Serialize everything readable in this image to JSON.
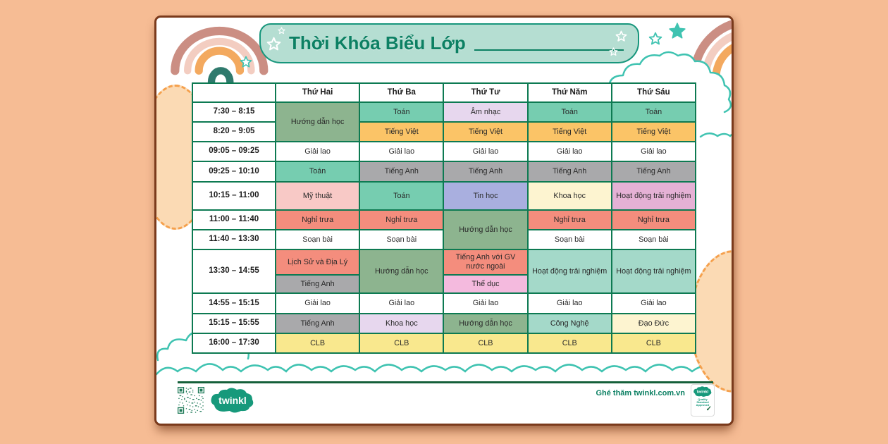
{
  "ui": {
    "background": "#f6bc94",
    "page": "#ffffff",
    "page_edge": "#7a3a1c",
    "banner_fill": "#b5ded2",
    "banner_border": "#17967c",
    "title_green": "#0c8063",
    "table_border": "#0d7a52",
    "cloud_teal": "#3fc3b1",
    "dash_orange": "#f5a04c",
    "blob_peach": "#fbdab4",
    "footer_green": "#15603a",
    "brand_teal": "#17997b",
    "qr_green": "#1e7a58",
    "text_dark": "#2a2a2a",
    "rainbow_rose": "#cb8e83",
    "rainbow_pink": "#f3cdc1",
    "rainbow_orange": "#f3a95f",
    "rainbow_teal": "#2f7a6d"
  },
  "subjects": {
    "white": "#ffffff",
    "teal": "#76cdb0",
    "sage": "#8db48f",
    "lavender": "#e7d7ee",
    "orange": "#fbc467",
    "gray": "#a9a9ab",
    "pink": "#f8c9c6",
    "periwinkle": "#a9afdf",
    "cream": "#fdf4d0",
    "mauve": "#e5b1d5",
    "salmon": "#f48d7d",
    "mint": "#a4d9c9",
    "rose": "#f4bade",
    "yellow": "#f9e88e"
  },
  "page": {
    "title": "Thời Khóa Biểu Lớp"
  },
  "timetable": {
    "header": [
      "",
      "Thứ Hai",
      "Thứ Ba",
      "Thứ Tư",
      "Thứ Năm",
      "Thứ Sáu"
    ],
    "rows": [
      {
        "time": "7:30 – 8:15",
        "cells": [
          {
            "t": "Hướng dẫn học",
            "c": "sage",
            "rs": 2
          },
          {
            "t": "Toán",
            "c": "teal"
          },
          {
            "t": "Âm nhạc",
            "c": "lavender"
          },
          {
            "t": "Toán",
            "c": "teal"
          },
          {
            "t": "Toán",
            "c": "teal"
          }
        ]
      },
      {
        "time": "8:20 – 9:05",
        "cells": [
          {
            "t": "Tiếng Việt",
            "c": "orange"
          },
          {
            "t": "Tiếng Việt",
            "c": "orange"
          },
          {
            "t": "Tiếng Việt",
            "c": "orange"
          },
          {
            "t": "Tiếng Việt",
            "c": "orange"
          }
        ]
      },
      {
        "time": "09:05 – 09:25",
        "cells": [
          {
            "t": "Giải lao",
            "c": "white"
          },
          {
            "t": "Giải lao",
            "c": "white"
          },
          {
            "t": "Giải lao",
            "c": "white"
          },
          {
            "t": "Giải lao",
            "c": "white"
          },
          {
            "t": "Giải lao",
            "c": "white"
          }
        ]
      },
      {
        "time": "09:25 – 10:10",
        "cells": [
          {
            "t": "Toán",
            "c": "teal"
          },
          {
            "t": "Tiếng Anh",
            "c": "gray"
          },
          {
            "t": "Tiếng Anh",
            "c": "gray"
          },
          {
            "t": "Tiếng Anh",
            "c": "gray"
          },
          {
            "t": "Tiếng Anh",
            "c": "gray"
          }
        ]
      },
      {
        "time": "10:15 – 11:00",
        "cells": [
          {
            "t": "Mỹ thuật",
            "c": "pink"
          },
          {
            "t": "Toán",
            "c": "teal"
          },
          {
            "t": "Tin học",
            "c": "periwinkle"
          },
          {
            "t": "Khoa học",
            "c": "cream"
          },
          {
            "t": "Hoạt động trải nghiệm",
            "c": "mauve"
          }
        ]
      },
      {
        "time": "11:00 – 11:40",
        "cells": [
          {
            "t": "Nghỉ trưa",
            "c": "salmon"
          },
          {
            "t": "Nghỉ trưa",
            "c": "salmon"
          },
          {
            "t": "Hướng dẫn học",
            "c": "sage",
            "rs": 2
          },
          {
            "t": "Nghỉ trưa",
            "c": "salmon"
          },
          {
            "t": "Nghỉ trưa",
            "c": "salmon"
          }
        ]
      },
      {
        "time": "11:40 – 13:30",
        "cells": [
          {
            "t": "Soạn bài",
            "c": "white"
          },
          {
            "t": "Soạn bài",
            "c": "white"
          },
          {
            "t": "Soạn bài",
            "c": "white"
          },
          {
            "t": "Soạn bài",
            "c": "white"
          }
        ]
      },
      {
        "time": "13:30 – 14:55",
        "cells": [
          {
            "split": [
              {
                "t": "Lịch Sử và Địa Lý",
                "c": "salmon"
              },
              {
                "t": "Tiếng Anh",
                "c": "gray"
              }
            ]
          },
          {
            "t": "Hướng dẫn học",
            "c": "sage"
          },
          {
            "split": [
              {
                "t": "Tiếng Anh với GV nước ngoài",
                "c": "salmon"
              },
              {
                "t": "Thể dục",
                "c": "rose"
              }
            ]
          },
          {
            "t": "Hoạt động trải nghiệm",
            "c": "mint"
          },
          {
            "t": "Hoạt động trải nghiệm",
            "c": "mint"
          }
        ]
      },
      {
        "time": "14:55 – 15:15",
        "cells": [
          {
            "t": "Giải lao",
            "c": "white"
          },
          {
            "t": "Giải lao",
            "c": "white"
          },
          {
            "t": "Giải lao",
            "c": "white"
          },
          {
            "t": "Giải lao",
            "c": "white"
          },
          {
            "t": "Giải lao",
            "c": "white"
          }
        ]
      },
      {
        "time": "15:15 – 15:55",
        "cells": [
          {
            "t": "Tiếng Anh",
            "c": "gray"
          },
          {
            "t": "Khoa học",
            "c": "lavender"
          },
          {
            "t": "Hướng dẫn học",
            "c": "sage"
          },
          {
            "t": "Công Nghệ",
            "c": "mint"
          },
          {
            "t": "Đạo Đức",
            "c": "cream"
          }
        ]
      },
      {
        "time": "16:00 – 17:30",
        "cells": [
          {
            "t": "CLB",
            "c": "yellow"
          },
          {
            "t": "CLB",
            "c": "yellow"
          },
          {
            "t": "CLB",
            "c": "yellow"
          },
          {
            "t": "CLB",
            "c": "yellow"
          },
          {
            "t": "CLB",
            "c": "yellow"
          }
        ]
      }
    ]
  },
  "footer": {
    "brand": "twinkl",
    "visit": "Ghé thăm twinkl.com.vn",
    "badge_brand": "twinkl",
    "badge_text": "Quality Standard Approved",
    "badge_check": "✓"
  }
}
